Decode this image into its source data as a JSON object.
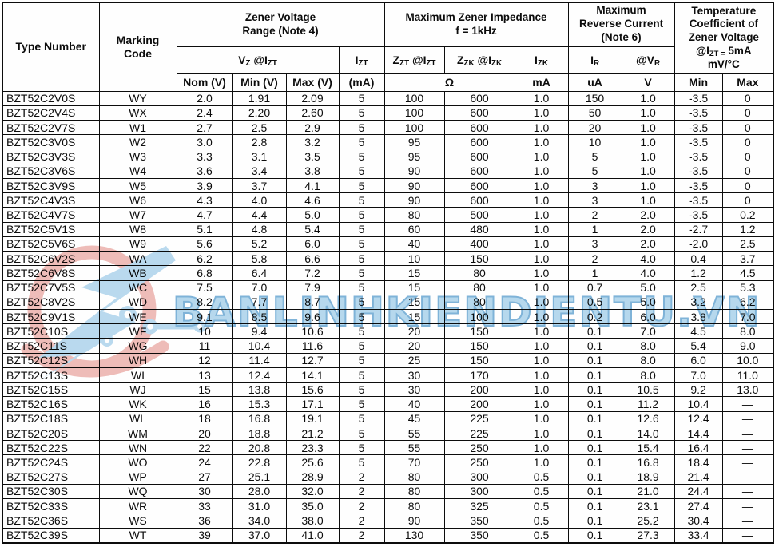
{
  "header": {
    "type_number": "Type Number",
    "marking_code": "Marking\nCode",
    "zener_group": "Zener Voltage\nRange (Note 4)",
    "vz": "V{Z} @I{ZT}",
    "izt": "I{ZT}",
    "impedance_group": "Maximum Zener Impedance\nf = 1kHz",
    "zzt": "Z{ZT} @I{ZT}",
    "zzk": "Z{ZK} @I{ZK}",
    "izk": "I{ZK}",
    "reverse_group": "Maximum\nReverse Current\n(Note 6)",
    "ir": "I{R}",
    "vr": "@V{R}",
    "temp_group": "Temperature\nCoefficient of\nZener Voltage\n@I{ZT =} 5mA\nmV/°C",
    "units": {
      "nom": "Nom (V)",
      "min": "Min (V)",
      "max": "Max (V)",
      "izt_ma": "(mA)",
      "ohm": "Ω",
      "izk_ma": "mA",
      "ir_ua": "uA",
      "vr_v": "V",
      "tc_min": "Min",
      "tc_max": "Max"
    }
  },
  "columns": [
    "Type Number",
    "Marking Code",
    "Nom (V)",
    "Min (V)",
    "Max (V)",
    "Izt (mA)",
    "Zzt @Izt (Ω)",
    "Zzk @Izk (Ω)",
    "Izk (mA)",
    "IR (uA)",
    "@VR (V)",
    "TC Min (mV/°C)",
    "TC Max (mV/°C)"
  ],
  "rows": [
    [
      "BZT52C2V0S",
      "WY",
      "2.0",
      "1.91",
      "2.09",
      "5",
      "100",
      "600",
      "1.0",
      "150",
      "1.0",
      "-3.5",
      "0"
    ],
    [
      "BZT52C2V4S",
      "WX",
      "2.4",
      "2.20",
      "2.60",
      "5",
      "100",
      "600",
      "1.0",
      "50",
      "1.0",
      "-3.5",
      "0"
    ],
    [
      "BZT52C2V7S",
      "W1",
      "2.7",
      "2.5",
      "2.9",
      "5",
      "100",
      "600",
      "1.0",
      "20",
      "1.0",
      "-3.5",
      "0"
    ],
    [
      "BZT52C3V0S",
      "W2",
      "3.0",
      "2.8",
      "3.2",
      "5",
      "95",
      "600",
      "1.0",
      "10",
      "1.0",
      "-3.5",
      "0"
    ],
    [
      "BZT52C3V3S",
      "W3",
      "3.3",
      "3.1",
      "3.5",
      "5",
      "95",
      "600",
      "1.0",
      "5",
      "1.0",
      "-3.5",
      "0"
    ],
    [
      "BZT52C3V6S",
      "W4",
      "3.6",
      "3.4",
      "3.8",
      "5",
      "90",
      "600",
      "1.0",
      "5",
      "1.0",
      "-3.5",
      "0"
    ],
    [
      "BZT52C3V9S",
      "W5",
      "3.9",
      "3.7",
      "4.1",
      "5",
      "90",
      "600",
      "1.0",
      "3",
      "1.0",
      "-3.5",
      "0"
    ],
    [
      "BZT52C4V3S",
      "W6",
      "4.3",
      "4.0",
      "4.6",
      "5",
      "90",
      "600",
      "1.0",
      "3",
      "1.0",
      "-3.5",
      "0"
    ],
    [
      "BZT52C4V7S",
      "W7",
      "4.7",
      "4.4",
      "5.0",
      "5",
      "80",
      "500",
      "1.0",
      "2",
      "2.0",
      "-3.5",
      "0.2"
    ],
    [
      "BZT52C5V1S",
      "W8",
      "5.1",
      "4.8",
      "5.4",
      "5",
      "60",
      "480",
      "1.0",
      "1",
      "2.0",
      "-2.7",
      "1.2"
    ],
    [
      "BZT52C5V6S",
      "W9",
      "5.6",
      "5.2",
      "6.0",
      "5",
      "40",
      "400",
      "1.0",
      "3",
      "2.0",
      "-2.0",
      "2.5"
    ],
    [
      "BZT52C6V2S",
      "WA",
      "6.2",
      "5.8",
      "6.6",
      "5",
      "10",
      "150",
      "1.0",
      "2",
      "4.0",
      "0.4",
      "3.7"
    ],
    [
      "BZT52C6V8S",
      "WB",
      "6.8",
      "6.4",
      "7.2",
      "5",
      "15",
      "80",
      "1.0",
      "1",
      "4.0",
      "1.2",
      "4.5"
    ],
    [
      "BZT52C7V5S",
      "WC",
      "7.5",
      "7.0",
      "7.9",
      "5",
      "15",
      "80",
      "1.0",
      "0.7",
      "5.0",
      "2.5",
      "5.3"
    ],
    [
      "BZT52C8V2S",
      "WD",
      "8.2",
      "7.7",
      "8.7",
      "5",
      "15",
      "80",
      "1.0",
      "0.5",
      "5.0",
      "3.2",
      "6.2"
    ],
    [
      "BZT52C9V1S",
      "WE",
      "9.1",
      "8.5",
      "9.6",
      "5",
      "15",
      "100",
      "1.0",
      "0.2",
      "6.0",
      "3.8",
      "7.0"
    ],
    [
      "BZT52C10S",
      "WF",
      "10",
      "9.4",
      "10.6",
      "5",
      "20",
      "150",
      "1.0",
      "0.1",
      "7.0",
      "4.5",
      "8.0"
    ],
    [
      "BZT52C11S",
      "WG",
      "11",
      "10.4",
      "11.6",
      "5",
      "20",
      "150",
      "1.0",
      "0.1",
      "8.0",
      "5.4",
      "9.0"
    ],
    [
      "BZT52C12S",
      "WH",
      "12",
      "11.4",
      "12.7",
      "5",
      "25",
      "150",
      "1.0",
      "0.1",
      "8.0",
      "6.0",
      "10.0"
    ],
    [
      "BZT52C13S",
      "WI",
      "13",
      "12.4",
      "14.1",
      "5",
      "30",
      "170",
      "1.0",
      "0.1",
      "8.0",
      "7.0",
      "11.0"
    ],
    [
      "BZT52C15S",
      "WJ",
      "15",
      "13.8",
      "15.6",
      "5",
      "30",
      "200",
      "1.0",
      "0.1",
      "10.5",
      "9.2",
      "13.0"
    ],
    [
      "BZT52C16S",
      "WK",
      "16",
      "15.3",
      "17.1",
      "5",
      "40",
      "200",
      "1.0",
      "0.1",
      "11.2",
      "10.4",
      "—"
    ],
    [
      "BZT52C18S",
      "WL",
      "18",
      "16.8",
      "19.1",
      "5",
      "45",
      "225",
      "1.0",
      "0.1",
      "12.6",
      "12.4",
      "—"
    ],
    [
      "BZT52C20S",
      "WM",
      "20",
      "18.8",
      "21.2",
      "5",
      "55",
      "225",
      "1.0",
      "0.1",
      "14.0",
      "14.4",
      "—"
    ],
    [
      "BZT52C22S",
      "WN",
      "22",
      "20.8",
      "23.3",
      "5",
      "55",
      "250",
      "1.0",
      "0.1",
      "15.4",
      "16.4",
      "—"
    ],
    [
      "BZT52C24S",
      "WO",
      "24",
      "22.8",
      "25.6",
      "5",
      "70",
      "250",
      "1.0",
      "0.1",
      "16.8",
      "18.4",
      "—"
    ],
    [
      "BZT52C27S",
      "WP",
      "27",
      "25.1",
      "28.9",
      "2",
      "80",
      "300",
      "0.5",
      "0.1",
      "18.9",
      "21.4",
      "—"
    ],
    [
      "BZT52C30S",
      "WQ",
      "30",
      "28.0",
      "32.0",
      "2",
      "80",
      "300",
      "0.5",
      "0.1",
      "21.0",
      "24.4",
      "—"
    ],
    [
      "BZT52C33S",
      "WR",
      "33",
      "31.0",
      "35.0",
      "2",
      "80",
      "325",
      "0.5",
      "0.1",
      "23.1",
      "27.4",
      "—"
    ],
    [
      "BZT52C36S",
      "WS",
      "36",
      "34.0",
      "38.0",
      "2",
      "90",
      "350",
      "0.5",
      "0.1",
      "25.2",
      "30.4",
      "—"
    ],
    [
      "BZT52C39S",
      "WT",
      "39",
      "37.0",
      "41.0",
      "2",
      "130",
      "350",
      "0.5",
      "0.1",
      "27.3",
      "33.4",
      "—"
    ]
  ],
  "watermark": {
    "text": "BANLINHKIENDIENTU.VN",
    "text_fill": "#b7d9ee",
    "text_outline": "#7fb4d9",
    "logo_red": "#e5928b",
    "logo_blue": "#8cc1e4"
  }
}
